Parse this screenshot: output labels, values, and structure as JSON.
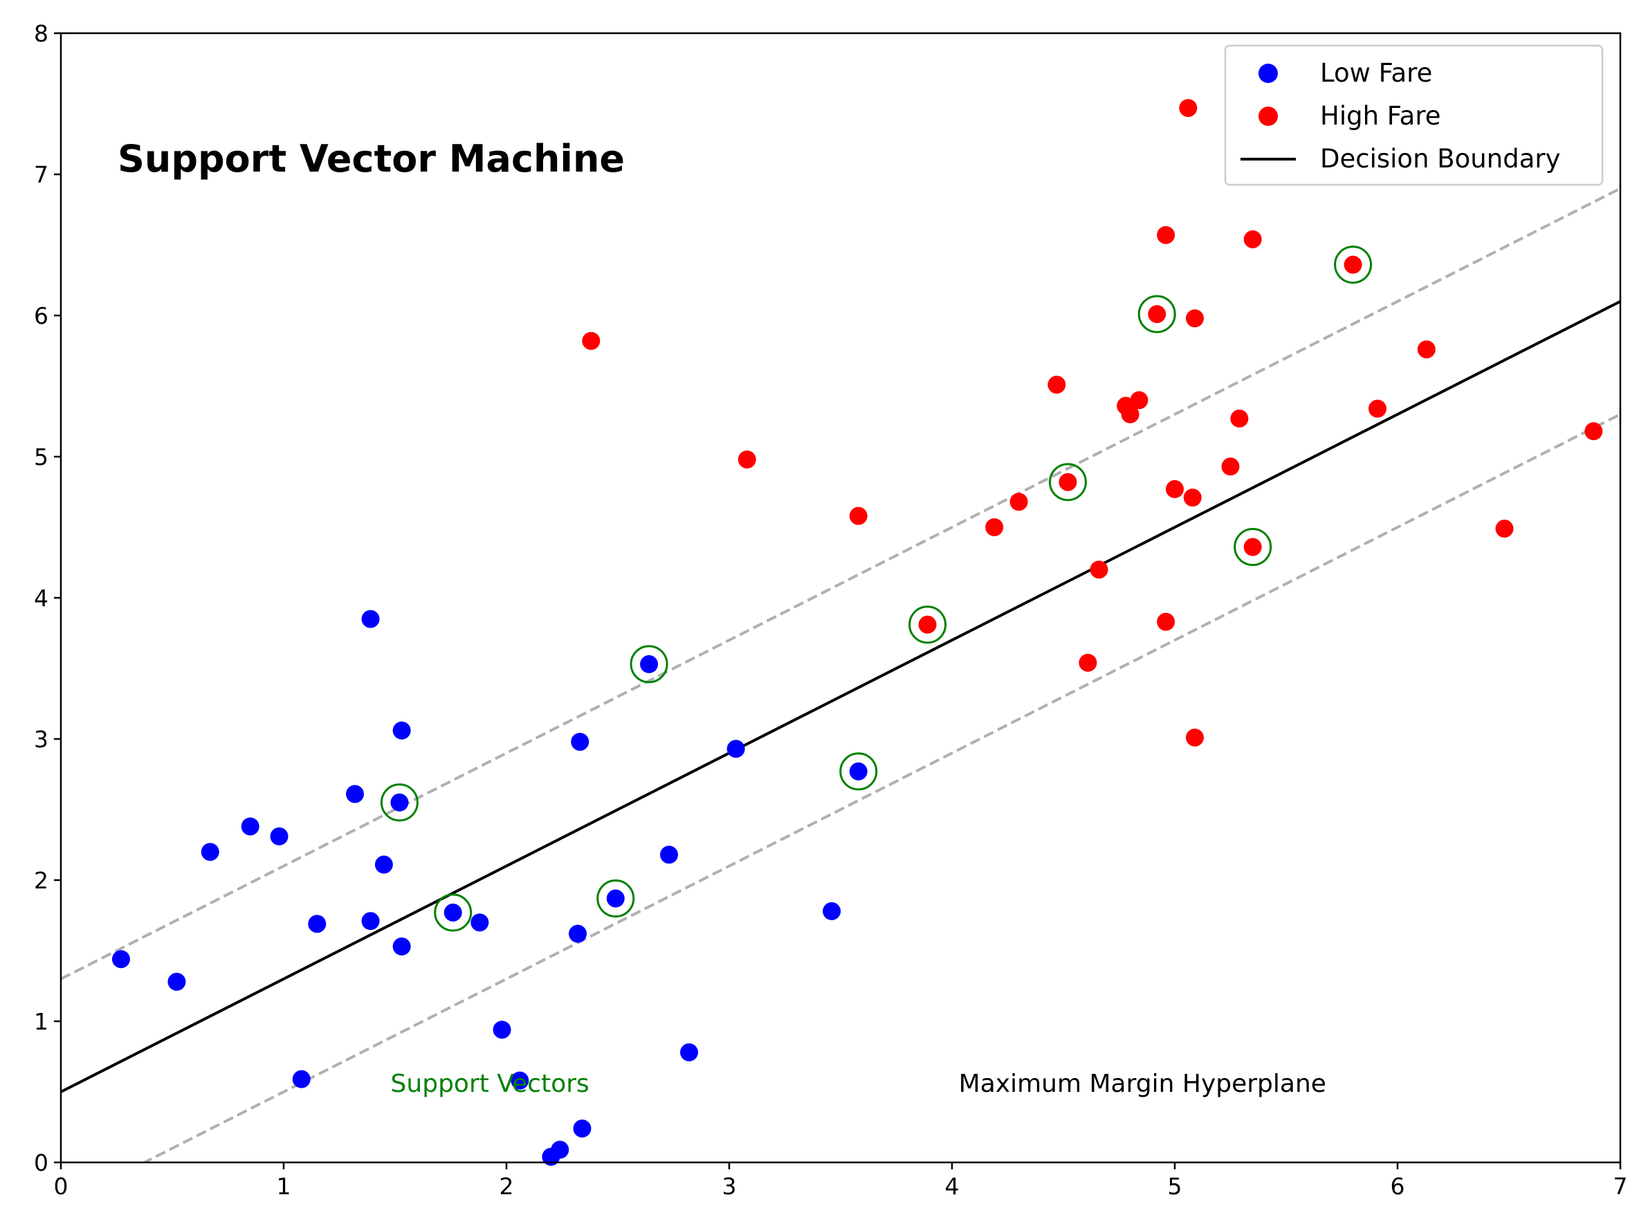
{
  "chart_data": {
    "type": "scatter",
    "title": "Support Vector Machine",
    "xlabel": "",
    "ylabel": "",
    "xlim": [
      0,
      7
    ],
    "ylim": [
      0,
      8
    ],
    "xticks": [
      "0",
      "1",
      "2",
      "3",
      "4",
      "5",
      "6",
      "7"
    ],
    "yticks": [
      "0",
      "1",
      "2",
      "3",
      "4",
      "5",
      "6",
      "7",
      "8"
    ],
    "grid": false,
    "legend_position": "top-right",
    "colors": {
      "low": "#0000ff",
      "high": "#ff0000",
      "boundary": "#000000",
      "margin": "#b0b0b0",
      "support": "#008000"
    },
    "series": [
      {
        "name": "Low Fare",
        "points": [
          [
            0.27,
            1.44
          ],
          [
            0.52,
            1.28
          ],
          [
            0.67,
            2.2
          ],
          [
            0.85,
            2.38
          ],
          [
            0.98,
            2.31
          ],
          [
            1.08,
            0.59
          ],
          [
            1.15,
            1.69
          ],
          [
            1.32,
            2.61
          ],
          [
            1.39,
            3.85
          ],
          [
            1.39,
            1.71
          ],
          [
            1.45,
            2.11
          ],
          [
            1.52,
            2.55
          ],
          [
            1.53,
            3.06
          ],
          [
            1.53,
            1.53
          ],
          [
            1.76,
            1.77
          ],
          [
            1.88,
            1.7
          ],
          [
            1.98,
            0.94
          ],
          [
            2.06,
            0.58
          ],
          [
            2.2,
            0.04
          ],
          [
            2.24,
            0.09
          ],
          [
            2.32,
            1.62
          ],
          [
            2.33,
            2.98
          ],
          [
            2.34,
            0.24
          ],
          [
            2.49,
            1.87
          ],
          [
            2.64,
            3.53
          ],
          [
            2.73,
            2.18
          ],
          [
            2.82,
            0.78
          ],
          [
            3.03,
            2.93
          ],
          [
            3.46,
            1.78
          ],
          [
            3.58,
            2.77
          ]
        ]
      },
      {
        "name": "High Fare",
        "points": [
          [
            2.38,
            5.82
          ],
          [
            3.08,
            4.98
          ],
          [
            3.58,
            4.58
          ],
          [
            3.89,
            3.81
          ],
          [
            4.19,
            4.5
          ],
          [
            4.3,
            4.68
          ],
          [
            4.47,
            5.51
          ],
          [
            4.52,
            4.82
          ],
          [
            4.61,
            3.54
          ],
          [
            4.66,
            4.2
          ],
          [
            4.78,
            5.36
          ],
          [
            4.8,
            5.3
          ],
          [
            4.84,
            5.4
          ],
          [
            4.92,
            6.01
          ],
          [
            4.96,
            6.57
          ],
          [
            4.96,
            3.83
          ],
          [
            5.0,
            4.77
          ],
          [
            5.06,
            7.47
          ],
          [
            5.08,
            4.71
          ],
          [
            5.09,
            3.01
          ],
          [
            5.09,
            5.98
          ],
          [
            5.25,
            4.93
          ],
          [
            5.29,
            5.27
          ],
          [
            5.35,
            6.54
          ],
          [
            5.35,
            4.36
          ],
          [
            5.8,
            6.36
          ],
          [
            5.91,
            5.34
          ],
          [
            6.13,
            5.76
          ],
          [
            6.48,
            4.49
          ],
          [
            6.88,
            5.18
          ]
        ]
      }
    ],
    "decision_boundary": {
      "name": "Decision Boundary",
      "slope": 0.8,
      "intercept": 0.5
    },
    "margins": [
      {
        "slope": 0.8,
        "intercept": 1.3
      },
      {
        "slope": 0.8,
        "intercept": -0.3
      }
    ],
    "support_vectors": [
      [
        1.52,
        2.55
      ],
      [
        1.76,
        1.77
      ],
      [
        2.49,
        1.87
      ],
      [
        2.64,
        3.53
      ],
      [
        3.58,
        2.77
      ],
      [
        3.89,
        3.81
      ],
      [
        4.52,
        4.82
      ],
      [
        4.92,
        6.01
      ],
      [
        5.35,
        4.36
      ],
      [
        5.8,
        6.36
      ]
    ],
    "annotations": [
      {
        "text": "Support Vectors",
        "x": 1.48,
        "y": 0.5,
        "color": "#008000"
      },
      {
        "text": "Maximum Margin Hyperplane",
        "x": 4.03,
        "y": 0.5,
        "color": "#000000"
      }
    ]
  }
}
